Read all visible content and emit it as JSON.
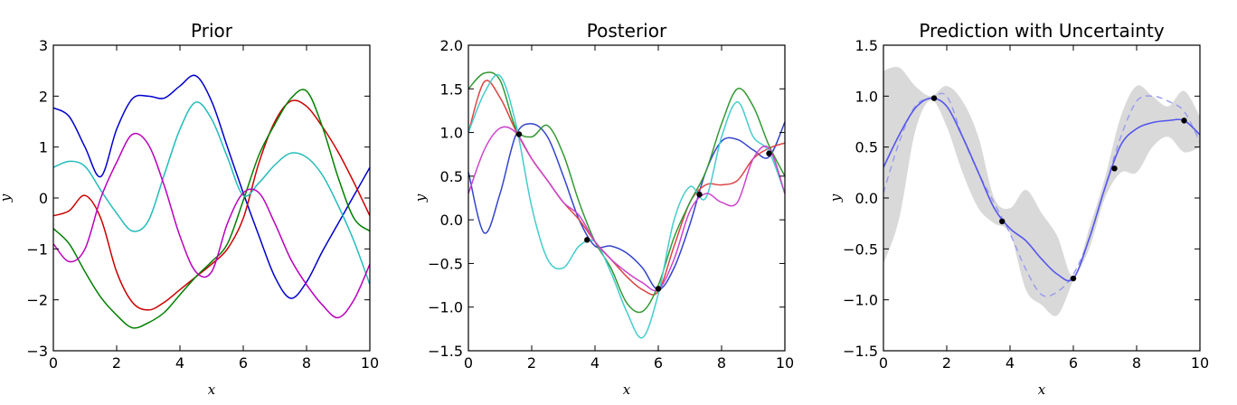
{
  "chart_data": [
    {
      "type": "line",
      "title": "Prior",
      "xlabel": "x",
      "ylabel": "y",
      "xlim": [
        0,
        10
      ],
      "ylim": [
        -3,
        3
      ],
      "xticks": [
        "0",
        "2",
        "4",
        "6",
        "8",
        "10"
      ],
      "yticks": [
        "−3",
        "−2",
        "−1",
        "0",
        "1",
        "2",
        "3"
      ],
      "grid": false,
      "x": [
        0,
        0.5,
        1,
        1.5,
        2,
        2.5,
        3,
        3.5,
        4,
        4.5,
        5,
        5.5,
        6,
        6.5,
        7,
        7.5,
        8,
        8.5,
        9,
        9.5,
        10
      ],
      "series": [
        {
          "color": "#0000cc",
          "values": [
            1.77,
            1.6,
            1.0,
            0.42,
            1.35,
            1.95,
            2.0,
            1.96,
            2.2,
            2.4,
            1.9,
            1.0,
            0.1,
            -0.75,
            -1.55,
            -1.97,
            -1.65,
            -1.05,
            -0.5,
            0.05,
            0.6
          ]
        },
        {
          "color": "#cc0000",
          "values": [
            -0.35,
            -0.25,
            0.05,
            -0.4,
            -1.45,
            -2.05,
            -2.2,
            -2.05,
            -1.8,
            -1.55,
            -1.3,
            -1.0,
            -0.4,
            0.7,
            1.5,
            1.9,
            1.8,
            1.4,
            0.9,
            0.3,
            -0.35
          ]
        },
        {
          "color": "#008000",
          "values": [
            -0.6,
            -0.9,
            -1.45,
            -1.95,
            -2.3,
            -2.55,
            -2.45,
            -2.25,
            -1.9,
            -1.55,
            -1.25,
            -0.9,
            -0.05,
            0.85,
            1.45,
            1.95,
            2.1,
            1.4,
            0.4,
            -0.4,
            -0.65
          ]
        },
        {
          "color": "#22bbbb",
          "values": [
            0.6,
            0.72,
            0.62,
            0.15,
            -0.3,
            -0.65,
            -0.45,
            0.45,
            1.35,
            1.88,
            1.55,
            0.8,
            0.05,
            0.3,
            0.65,
            0.88,
            0.8,
            0.45,
            -0.15,
            -0.85,
            -1.7
          ]
        },
        {
          "color": "#bb00bb",
          "values": [
            -0.9,
            -1.25,
            -1.0,
            0.0,
            0.7,
            1.25,
            1.05,
            0.25,
            -0.75,
            -1.45,
            -1.45,
            -0.5,
            0.1,
            0.1,
            -0.5,
            -1.2,
            -1.7,
            -2.1,
            -2.35,
            -2.0,
            -1.3
          ]
        }
      ]
    },
    {
      "type": "line",
      "title": "Posterior",
      "xlabel": "x",
      "ylabel": "y",
      "xlim": [
        0,
        10
      ],
      "ylim": [
        -1.5,
        2.0
      ],
      "xticks": [
        "0",
        "2",
        "4",
        "6",
        "8",
        "10"
      ],
      "yticks": [
        "−1.5",
        "−1.0",
        "−0.5",
        "0.0",
        "0.5",
        "1.0",
        "1.5",
        "2.0"
      ],
      "grid": false,
      "x": [
        0,
        0.5,
        1,
        1.5,
        2,
        2.5,
        3,
        3.5,
        4,
        4.5,
        5,
        5.5,
        6,
        6.5,
        7,
        7.5,
        8,
        8.5,
        9,
        9.5,
        10
      ],
      "series": [
        {
          "color": "#3344cc",
          "values": [
            0.55,
            -0.15,
            0.3,
            0.97,
            1.1,
            0.95,
            0.5,
            0.0,
            -0.3,
            -0.3,
            -0.38,
            -0.55,
            -0.8,
            -0.55,
            -0.05,
            0.55,
            0.9,
            0.92,
            0.8,
            0.72,
            1.12
          ]
        },
        {
          "color": "#dd4444",
          "values": [
            1.0,
            1.58,
            1.4,
            1.02,
            0.7,
            0.45,
            0.2,
            0.0,
            -0.25,
            -0.45,
            -0.65,
            -0.8,
            -0.82,
            -0.3,
            0.2,
            0.4,
            0.4,
            0.45,
            0.7,
            0.82,
            0.88
          ]
        },
        {
          "color": "#339933",
          "values": [
            1.5,
            1.68,
            1.6,
            1.05,
            0.95,
            1.08,
            0.75,
            0.2,
            -0.25,
            -0.55,
            -0.95,
            -1.05,
            -0.75,
            -0.2,
            0.2,
            0.55,
            1.1,
            1.5,
            1.3,
            0.85,
            0.5
          ]
        },
        {
          "color": "#44cccc",
          "values": [
            1.0,
            1.45,
            1.65,
            1.1,
            0.15,
            -0.45,
            -0.55,
            -0.3,
            -0.25,
            -0.6,
            -1.05,
            -1.35,
            -0.85,
            0.0,
            0.38,
            0.25,
            0.95,
            1.35,
            0.95,
            0.78,
            0.3
          ]
        },
        {
          "color": "#cc44cc",
          "values": [
            0.3,
            0.8,
            1.05,
            1.0,
            0.7,
            0.45,
            0.2,
            0.05,
            -0.25,
            -0.45,
            -0.6,
            -0.72,
            -0.8,
            -0.45,
            0.1,
            0.3,
            0.2,
            0.2,
            0.7,
            0.82,
            0.3
          ]
        }
      ],
      "observations": {
        "x": [
          1.6,
          3.75,
          6.0,
          7.3,
          9.5
        ],
        "y": [
          0.98,
          -0.23,
          -0.79,
          0.29,
          0.76
        ]
      }
    },
    {
      "type": "line",
      "title": "Prediction with Uncertainty",
      "xlabel": "x",
      "ylabel": "y",
      "xlim": [
        0,
        10
      ],
      "ylim": [
        -1.5,
        1.5
      ],
      "xticks": [
        "0",
        "2",
        "4",
        "6",
        "8",
        "10"
      ],
      "yticks": [
        "−1.5",
        "−1.0",
        "−0.5",
        "0.0",
        "0.5",
        "1.0",
        "1.5"
      ],
      "grid": false,
      "band_color": "#d9d9d9",
      "mean_color": "#5555ee",
      "x": [
        0,
        0.5,
        1,
        1.5,
        2,
        2.5,
        3,
        3.5,
        4,
        4.5,
        5,
        5.5,
        6,
        6.5,
        7,
        7.5,
        8,
        8.5,
        9,
        9.5,
        10
      ],
      "mean": [
        0.3,
        0.62,
        0.88,
        0.98,
        0.9,
        0.6,
        0.25,
        -0.1,
        -0.3,
        -0.42,
        -0.6,
        -0.75,
        -0.79,
        -0.4,
        0.1,
        0.52,
        0.68,
        0.74,
        0.76,
        0.76,
        0.62
      ],
      "lower": [
        -0.65,
        -0.2,
        0.65,
        0.96,
        0.7,
        0.25,
        -0.1,
        -0.25,
        -0.35,
        -0.9,
        -1.05,
        -1.15,
        -0.81,
        -0.5,
        0.0,
        0.25,
        0.25,
        0.5,
        0.6,
        0.45,
        0.5
      ],
      "upper": [
        1.25,
        1.28,
        1.1,
        1.0,
        1.1,
        0.95,
        0.6,
        0.0,
        -0.1,
        0.08,
        -0.15,
        -0.38,
        -0.77,
        -0.3,
        0.2,
        0.8,
        1.1,
        1.0,
        0.9,
        1.05,
        0.8
      ],
      "target": {
        "color": "#9999ee",
        "values": [
          0.05,
          0.55,
          0.9,
          0.98,
          1.0,
          0.6,
          0.25,
          -0.05,
          -0.35,
          -0.7,
          -0.95,
          -0.92,
          -0.75,
          -0.4,
          0.1,
          0.6,
          0.95,
          1.0,
          0.95,
          0.85,
          0.55
        ]
      },
      "observations": {
        "x": [
          1.6,
          3.75,
          6.0,
          7.3,
          9.5
        ],
        "y": [
          0.98,
          -0.23,
          -0.79,
          0.29,
          0.76
        ]
      }
    }
  ]
}
